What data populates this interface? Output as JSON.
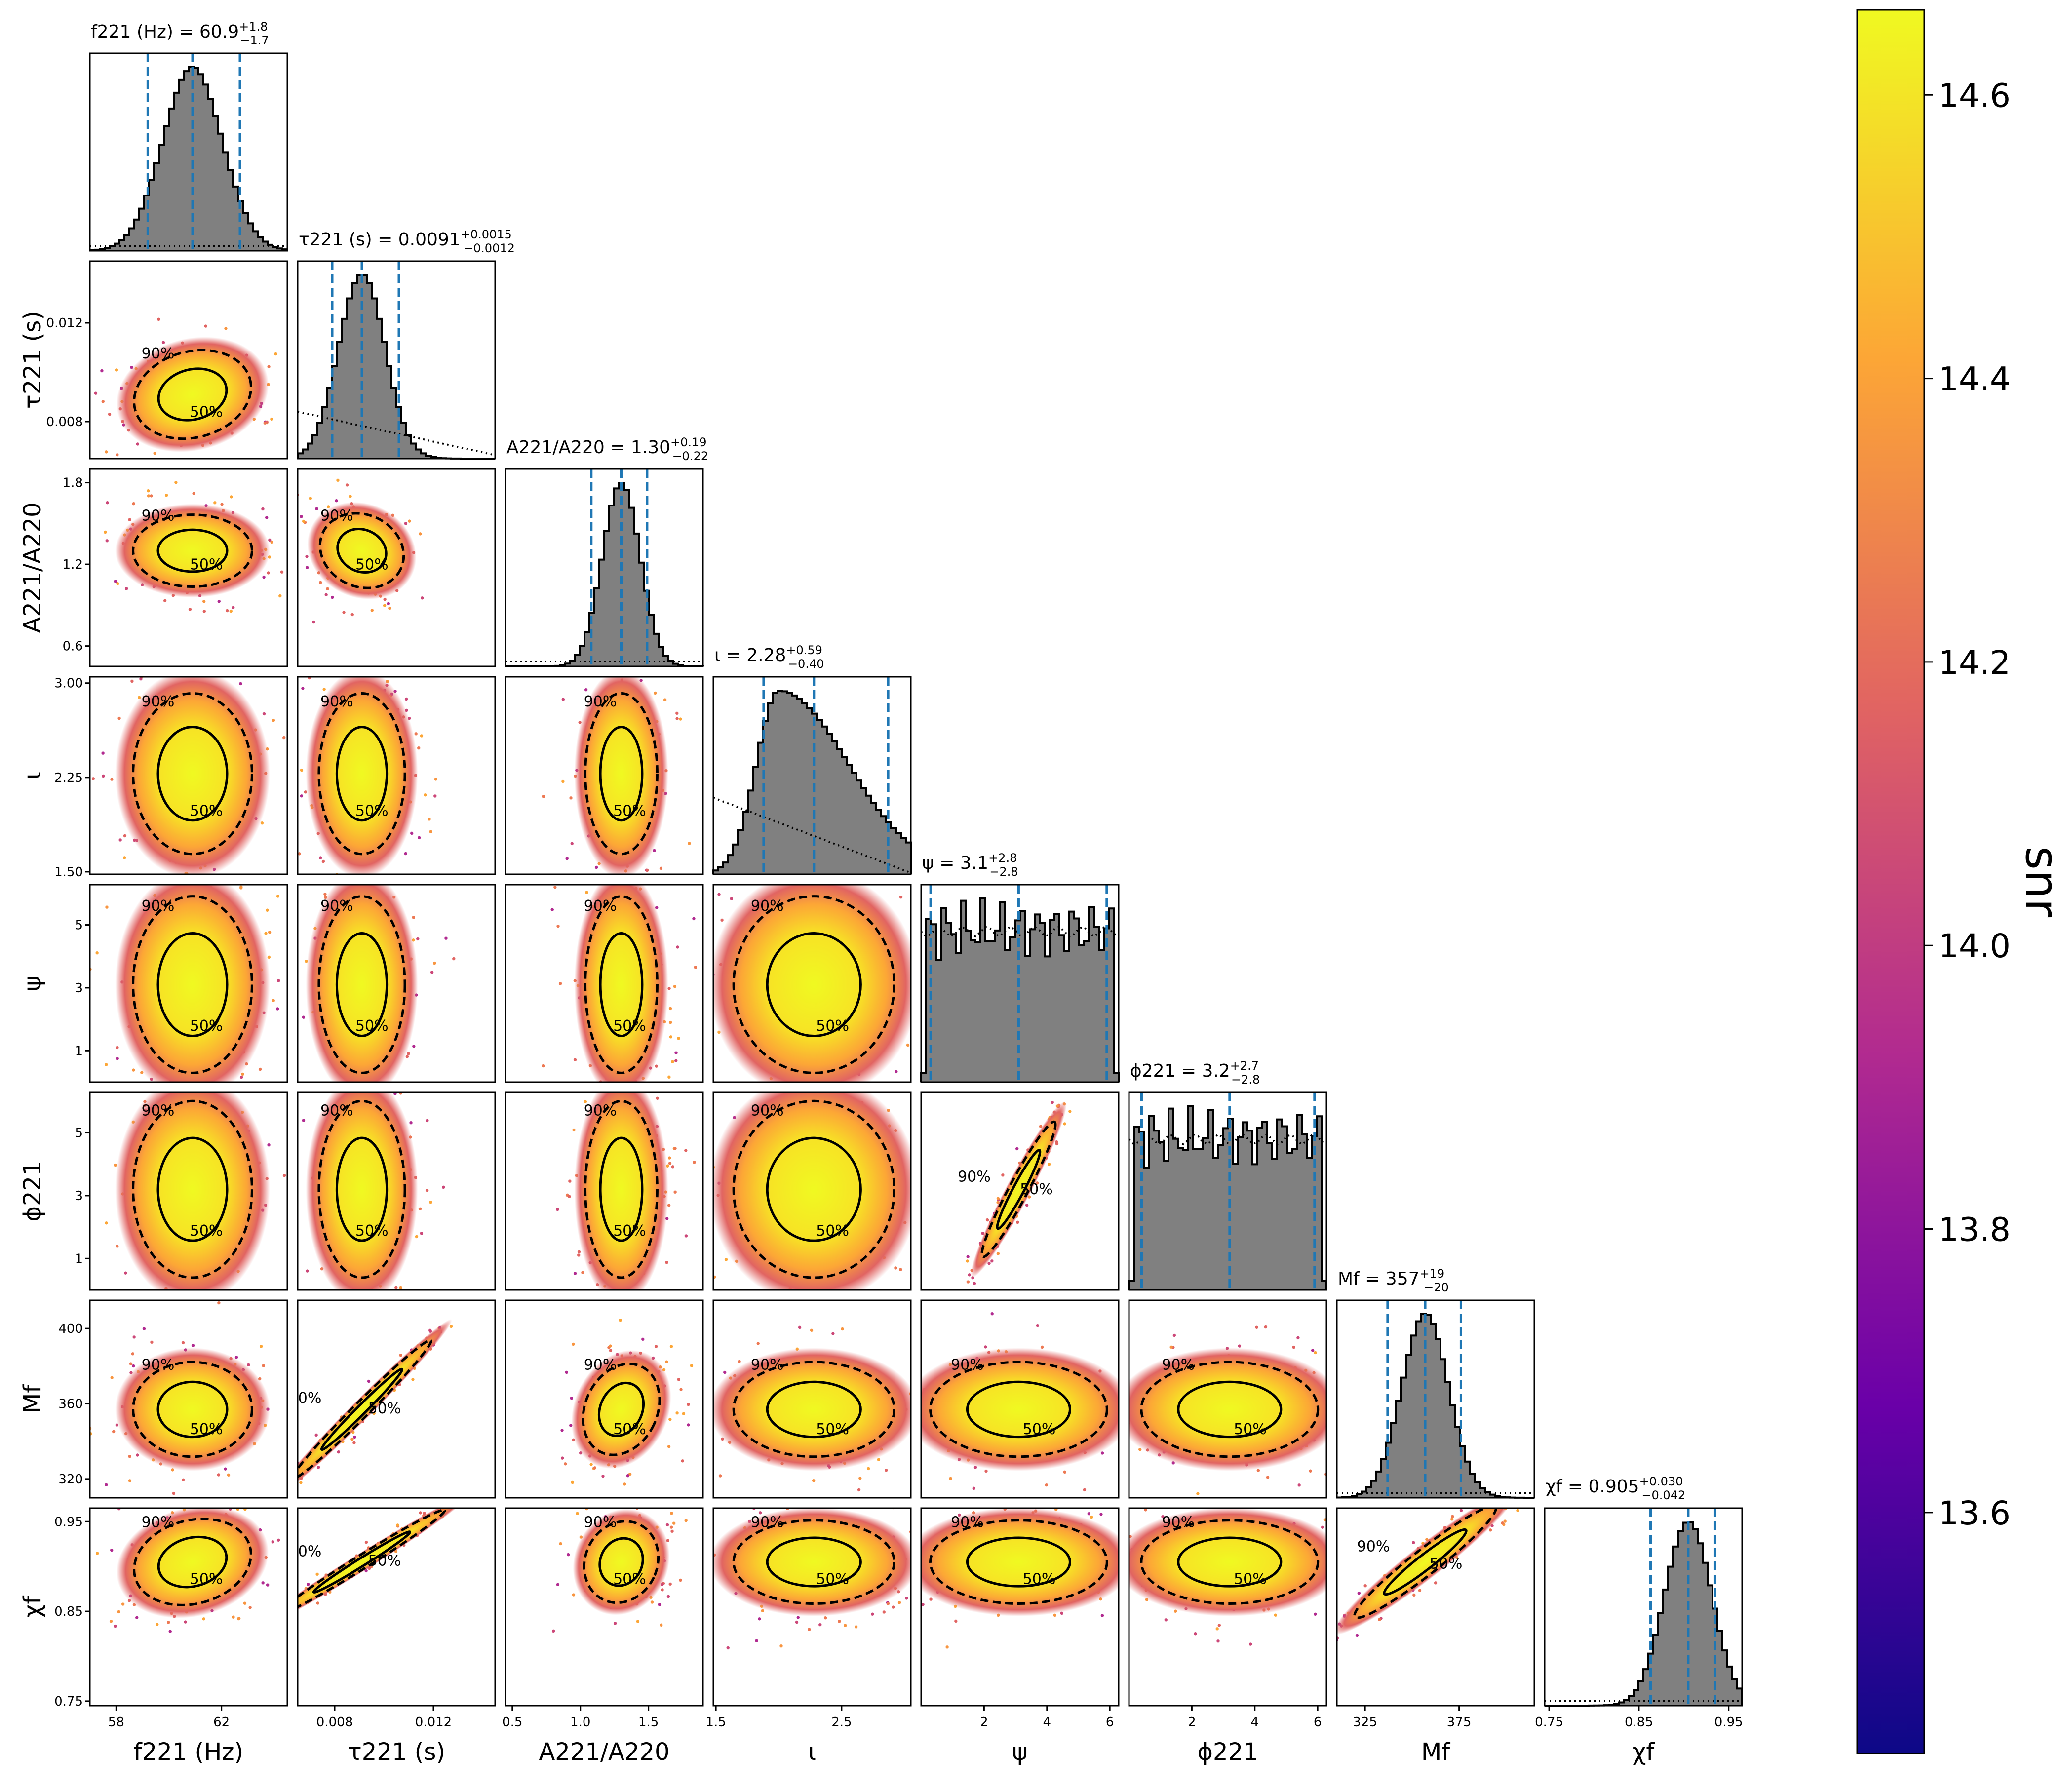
{
  "chart_data": {
    "type": "corner",
    "parameters": [
      {
        "key": "f221",
        "label": "f221 (Hz)",
        "title_value": "60.9",
        "title_plus": "+1.8",
        "title_minus": "−1.7",
        "title_prefix": "f221 (Hz) =",
        "range": [
          57,
          64.5
        ],
        "ticks": [
          58,
          62
        ],
        "tick_labels": [
          "58",
          "62"
        ],
        "median": 60.9,
        "lo": 59.2,
        "hi": 62.7
      },
      {
        "key": "tau221",
        "label": "τ221 (s)",
        "title_value": "0.0091",
        "title_plus": "+0.0015",
        "title_minus": "−0.0012",
        "title_prefix": "τ221 (s) =",
        "range": [
          0.0065,
          0.0145
        ],
        "ticks": [
          0.008,
          0.012
        ],
        "tick_labels": [
          "0.008",
          "0.012"
        ],
        "median": 0.0091,
        "lo": 0.0079,
        "hi": 0.0106
      },
      {
        "key": "A221A220",
        "label": "A221/A220",
        "title_value": "1.30",
        "title_plus": "+0.19",
        "title_minus": "−0.22",
        "title_prefix": "A221/A220 =",
        "range": [
          0.45,
          1.9
        ],
        "ticks": [
          0.6,
          1.2,
          1.8
        ],
        "tick_labels": [
          "0.6",
          "1.2",
          "1.8"
        ],
        "xticks": [
          0.5,
          1.0,
          1.5
        ],
        "xtick_labels": [
          "0.5",
          "1.0",
          "1.5"
        ],
        "median": 1.3,
        "lo": 1.08,
        "hi": 1.49
      },
      {
        "key": "iota",
        "label": "ι",
        "title_value": "2.28",
        "title_plus": "+0.59",
        "title_minus": "−0.40",
        "title_prefix": "ι =",
        "range": [
          1.48,
          3.05
        ],
        "ticks": [
          1.5,
          2.25,
          3.0
        ],
        "tick_labels": [
          "1.50",
          "2.25",
          "3.00"
        ],
        "xticks": [
          1.5,
          2.5
        ],
        "xtick_labels": [
          "1.5",
          "2.5"
        ],
        "median": 2.28,
        "lo": 1.88,
        "hi": 2.87
      },
      {
        "key": "psi",
        "label": "ψ",
        "title_value": "3.1",
        "title_plus": "+2.8",
        "title_minus": "−2.8",
        "title_prefix": "ψ =",
        "range": [
          0,
          6.28
        ],
        "ticks": [
          1,
          3,
          5
        ],
        "tick_labels": [
          "1",
          "3",
          "5"
        ],
        "xticks": [
          2,
          4,
          6
        ],
        "xtick_labels": [
          "2",
          "4",
          "6"
        ],
        "median": 3.1,
        "lo": 0.3,
        "hi": 5.9
      },
      {
        "key": "phi221",
        "label": "ϕ221",
        "title_value": "3.2",
        "title_plus": "+2.7",
        "title_minus": "−2.8",
        "title_prefix": "ϕ221 =",
        "range": [
          0,
          6.28
        ],
        "ticks": [
          1,
          3,
          5
        ],
        "tick_labels": [
          "1",
          "3",
          "5"
        ],
        "xticks": [
          2,
          4,
          6
        ],
        "xtick_labels": [
          "2",
          "4",
          "6"
        ],
        "median": 3.2,
        "lo": 0.4,
        "hi": 5.9
      },
      {
        "key": "Mf",
        "label": "Mf",
        "title_value": "357",
        "title_plus": "+19",
        "title_minus": "−20",
        "title_prefix": "Mf =",
        "range": [
          310,
          415
        ],
        "ticks": [
          320,
          360,
          400
        ],
        "tick_labels": [
          "320",
          "360",
          "400"
        ],
        "xticks": [
          325,
          375
        ],
        "xtick_labels": [
          "325",
          "375"
        ],
        "median": 357,
        "lo": 337,
        "hi": 376
      },
      {
        "key": "chif",
        "label": "χf",
        "title_value": "0.905",
        "title_plus": "+0.030",
        "title_minus": "−0.042",
        "title_prefix": "χf =",
        "range": [
          0.745,
          0.965
        ],
        "ticks": [
          0.75,
          0.85,
          0.95
        ],
        "tick_labels": [
          "0.75",
          "0.85",
          "0.95"
        ],
        "xticks": [
          0.75,
          0.85,
          0.95
        ],
        "xtick_labels": [
          "0.75",
          "0.85",
          "0.95"
        ],
        "median": 0.905,
        "lo": 0.863,
        "hi": 0.935
      }
    ],
    "contour_labels": [
      "50%",
      "90%"
    ],
    "colorbar": {
      "label": "snr",
      "range": [
        13.43,
        14.66
      ],
      "ticks": [
        13.6,
        13.8,
        14.0,
        14.2,
        14.4,
        14.6
      ],
      "tick_labels": [
        "13.6",
        "13.8",
        "14.0",
        "14.2",
        "14.4",
        "14.6"
      ],
      "colormap": "plasma"
    },
    "styles": {
      "hist_fill": "#808080",
      "quantile_line": "#1f77b4",
      "contour": "#000000",
      "colormap_stops": [
        "#0d0887",
        "#6a00a8",
        "#b12a90",
        "#e16462",
        "#fca636",
        "#f0f921"
      ]
    }
  }
}
